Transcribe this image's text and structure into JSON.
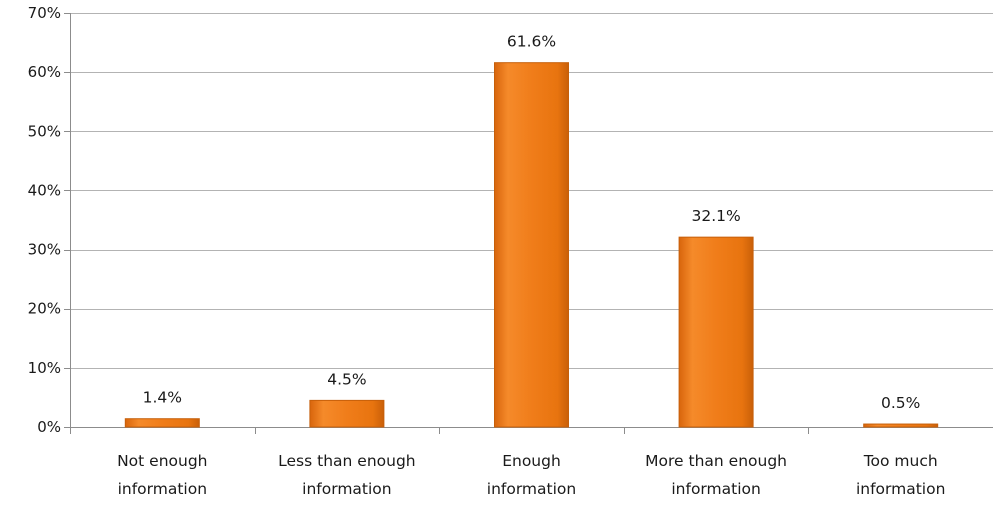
{
  "chart_data": {
    "type": "bar",
    "categories": [
      [
        "Not enough",
        "information"
      ],
      [
        "Less than enough",
        "information"
      ],
      [
        "Enough",
        "information"
      ],
      [
        "More than enough",
        "information"
      ],
      [
        "Too much",
        "information"
      ]
    ],
    "values": [
      1.4,
      4.5,
      61.6,
      32.1,
      0.5
    ],
    "data_labels": [
      "1.4%",
      "4.5%",
      "61.6%",
      "32.1%",
      "0.5%"
    ],
    "ylim": [
      0,
      70
    ],
    "yticks": [
      0,
      10,
      20,
      30,
      40,
      50,
      60,
      70
    ],
    "ytick_labels": [
      "0%",
      "10%",
      "20%",
      "30%",
      "40%",
      "50%",
      "60%",
      "70%"
    ],
    "grid": true,
    "legend": "none",
    "bar_color": "#f07d1a",
    "bar_edge_color": "#c65f0a",
    "grid_color": "#b3b3b3",
    "axis_color": "#8c8c8c"
  }
}
